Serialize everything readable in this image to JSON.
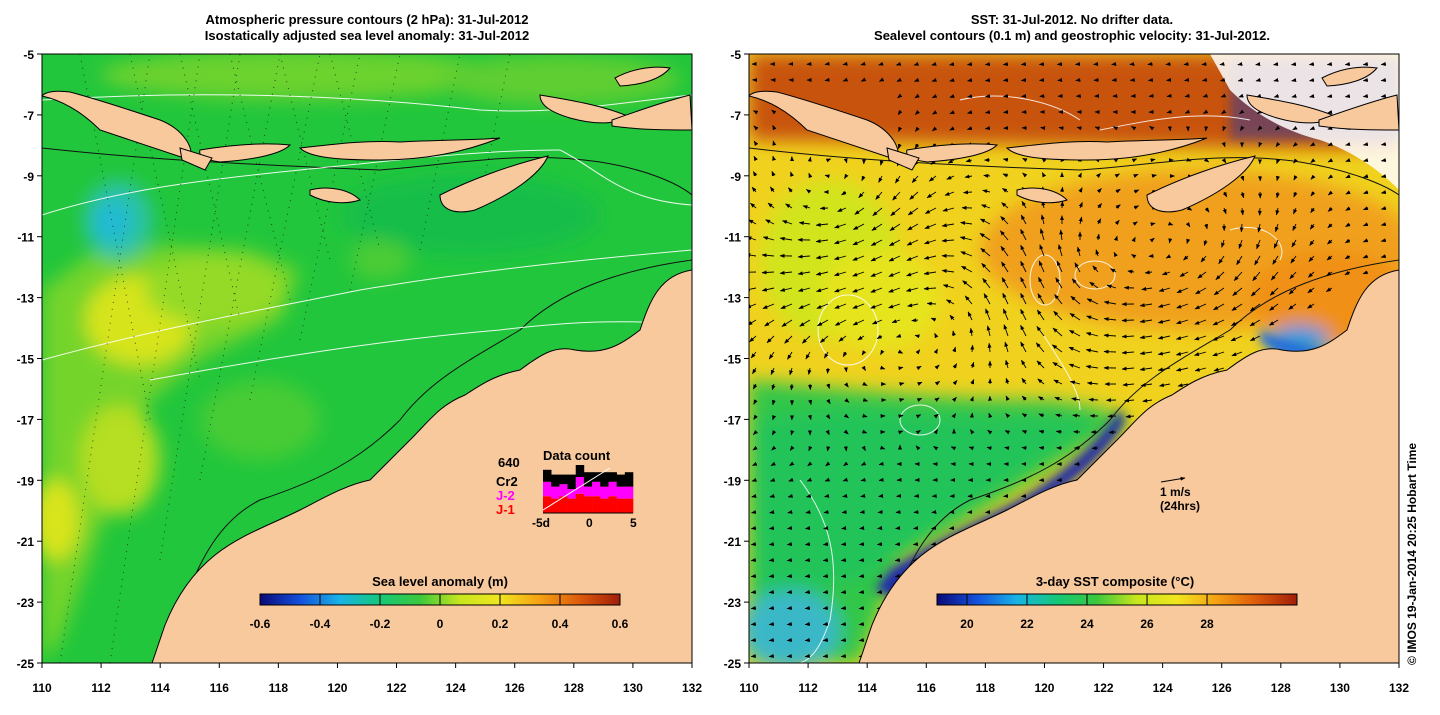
{
  "left_panel": {
    "title_line1": "Atmospheric pressure contours (2 hPa): 31-Jul-2012",
    "title_line2": "Isostatically adjusted sea level anomaly: 31-Jul-2012",
    "colorbar": {
      "label": "Sea level anomaly (m)",
      "ticks": [
        "-0.6",
        "-0.4",
        "-0.2",
        "0",
        "0.2",
        "0.4",
        "0.6"
      ],
      "palette": [
        "#0a0a78",
        "#1450dc",
        "#19b4e6",
        "#14c878",
        "#3cc83c",
        "#c8e61e",
        "#f0e61e",
        "#f5a014",
        "#dc5a0a",
        "#a01e0a"
      ]
    },
    "data_count": {
      "title": "Data count",
      "count": "640",
      "missions": [
        {
          "name": "Cr2",
          "color": "#000000"
        },
        {
          "name": "J-2",
          "color": "#ff00ff"
        },
        {
          "name": "J-1",
          "color": "#ff0000"
        }
      ],
      "x_ticks": [
        "-5d",
        "0",
        "5"
      ],
      "bars": [
        {
          "j1": 0.35,
          "j2": 0.3,
          "cr2": 0.25
        },
        {
          "j1": 0.3,
          "j2": 0.25,
          "cr2": 0.25
        },
        {
          "j1": 0.35,
          "j2": 0.25,
          "cr2": 0.2
        },
        {
          "j1": 0.3,
          "j2": 0.2,
          "cr2": 0.3
        },
        {
          "j1": 0.4,
          "j2": 0.35,
          "cr2": 0.25
        },
        {
          "j1": 0.35,
          "j2": 0.2,
          "cr2": 0.3
        },
        {
          "j1": 0.35,
          "j2": 0.3,
          "cr2": 0.2
        },
        {
          "j1": 0.3,
          "j2": 0.25,
          "cr2": 0.3
        },
        {
          "j1": 0.35,
          "j2": 0.3,
          "cr2": 0.2
        },
        {
          "j1": 0.3,
          "j2": 0.25,
          "cr2": 0.25
        },
        {
          "j1": 0.3,
          "j2": 0.25,
          "cr2": 0.3
        }
      ]
    }
  },
  "right_panel": {
    "title_line1": "SST: 31-Jul-2012. No drifter data.",
    "title_line2": "Sealevel contours (0.1 m) and geostrophic velocity: 31-Jul-2012.",
    "colorbar": {
      "label": "3-day SST composite (°C)",
      "ticks": [
        "20",
        "22",
        "24",
        "26",
        "28"
      ],
      "palette": [
        "#0a0a78",
        "#1450dc",
        "#19b4e6",
        "#14c878",
        "#3cc83c",
        "#c8e61e",
        "#f0e61e",
        "#f5a014",
        "#dc5a0a",
        "#a01e0a"
      ]
    },
    "velocity_scale": {
      "line1": "1 m/s",
      "line2": "(24hrs)"
    }
  },
  "axes": {
    "lat_labels": [
      "-5",
      "-7",
      "-9",
      "-11",
      "-13",
      "-15",
      "-17",
      "-19",
      "-21",
      "-23",
      "-25"
    ],
    "lon_labels": [
      "110",
      "112",
      "114",
      "116",
      "118",
      "120",
      "122",
      "124",
      "126",
      "128",
      "130",
      "132"
    ]
  },
  "credit": "© IMOS 19-Jan-2014 20:25 Hobart Time",
  "colors": {
    "land": "#f8c99d",
    "ocean_green": "#1bc340",
    "ocean_light": "#5dd230",
    "warm": "#f0a81e",
    "hot": "#c84a0a",
    "cold": "#2a6cd6"
  }
}
